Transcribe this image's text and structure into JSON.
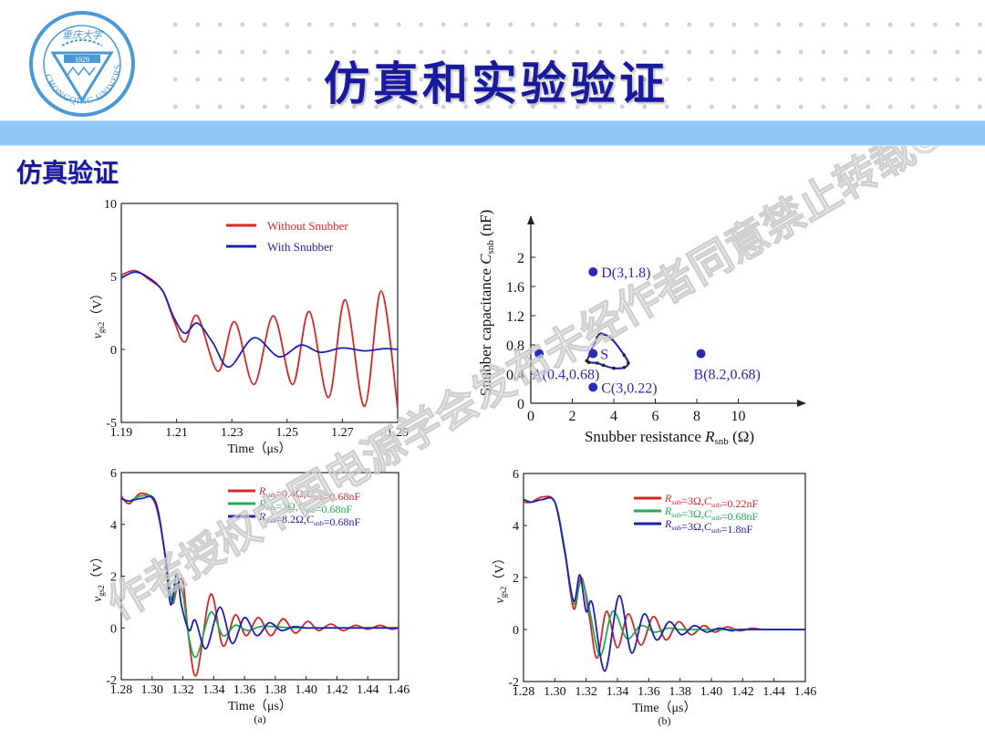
{
  "header": {
    "title": "仿真和实验验证",
    "subtitle": "仿真验证",
    "logo": {
      "name": "chongqing-university-logo",
      "year": "1929",
      "ring_text": "CHONGQING UNIVERSITY",
      "top_text": "重庆大学"
    },
    "colors": {
      "title": "#1a1a9e",
      "band": "#93c6f7"
    }
  },
  "watermark": {
    "text": "作者授权中国电源学会发布未经作者同意禁止转载©"
  },
  "chart_data": [
    {
      "id": "top-left",
      "type": "line",
      "title": "",
      "xlabel": "Time（μs）",
      "ylabel": "vgs2（V）",
      "xlim": [
        1.19,
        1.29
      ],
      "ylim": [
        -5,
        10
      ],
      "xticks": [
        "1.19",
        "1.21",
        "1.23",
        "1.25",
        "1.27",
        "1.29"
      ],
      "yticks": [
        "-5",
        "0",
        "5",
        "10"
      ],
      "legend_position": "upper-right",
      "series": [
        {
          "name": "Without Snubber",
          "color": "#d62728",
          "x": [
            1.19,
            1.195,
            1.2,
            1.205,
            1.209,
            1.213,
            1.2175,
            1.225,
            1.231,
            1.238,
            1.245,
            1.252,
            1.258,
            1.265,
            1.271,
            1.278,
            1.284,
            1.29
          ],
          "y": [
            5.1,
            5.4,
            4.8,
            4.0,
            2.0,
            0.5,
            2.3,
            -1.5,
            1.9,
            -2.4,
            2.3,
            -2.4,
            2.6,
            -3.3,
            3.4,
            -3.9,
            4.0,
            -4.0
          ]
        },
        {
          "name": "With Snubber",
          "color": "#1f1fb4",
          "x": [
            1.19,
            1.195,
            1.2,
            1.205,
            1.209,
            1.213,
            1.2175,
            1.223,
            1.229,
            1.238,
            1.247,
            1.255,
            1.262,
            1.27,
            1.278,
            1.285,
            1.29
          ],
          "y": [
            4.9,
            5.3,
            4.9,
            4.0,
            2.2,
            1.1,
            1.8,
            0.5,
            -1.2,
            0.8,
            -0.5,
            0.3,
            -0.2,
            0.1,
            -0.1,
            0.05,
            0.0
          ]
        }
      ]
    },
    {
      "id": "top-right",
      "type": "scatter",
      "title": "",
      "xlabel": "Snubber resistance Rsnb (Ω)",
      "ylabel": "Snubber capacitance Csnb (nF)",
      "xlim": [
        0,
        11
      ],
      "ylim": [
        0,
        2.4
      ],
      "xticks": [
        "0",
        "2",
        "4",
        "6",
        "8",
        "10"
      ],
      "yticks": [
        "0",
        "0.4",
        "0.8",
        "1.2",
        "1.6",
        "2"
      ],
      "color": "#2a2ab4",
      "points": [
        {
          "label": "A(0.4,0.68)",
          "x": 0.4,
          "y": 0.68
        },
        {
          "label": "B(8.2,0.68)",
          "x": 8.2,
          "y": 0.68
        },
        {
          "label": "C(3,0.22)",
          "x": 3,
          "y": 0.22
        },
        {
          "label": "D(3,1.8)",
          "x": 3,
          "y": 1.8
        },
        {
          "label": "S",
          "x": 3,
          "y": 0.68
        }
      ],
      "region_boundary": {
        "x": [
          2.7,
          3.2,
          3.4,
          3.9,
          4.5,
          4.7,
          4.5,
          4.0,
          3.5,
          3.2,
          2.8,
          2.7
        ],
        "y": [
          0.58,
          0.9,
          0.95,
          0.88,
          0.66,
          0.55,
          0.49,
          0.48,
          0.52,
          0.55,
          0.56,
          0.58
        ]
      }
    },
    {
      "id": "bottom-left",
      "type": "line",
      "title": "",
      "caption": "(a)",
      "xlabel": "Time（μs）",
      "ylabel": "vgs2（V）",
      "xlim": [
        1.28,
        1.46
      ],
      "ylim": [
        -2,
        6
      ],
      "xticks": [
        "1.28",
        "1.30",
        "1.32",
        "1.34",
        "1.36",
        "1.38",
        "1.40",
        "1.42",
        "1.44",
        "1.46"
      ],
      "yticks": [
        "-2",
        "0",
        "2",
        "4",
        "6"
      ],
      "legend_position": "upper-right",
      "series": [
        {
          "name": "Rsnb=0.4Ω,Csnb=0.68nF",
          "color": "#d62728",
          "x": [
            1.28,
            1.285,
            1.293,
            1.302,
            1.308,
            1.313,
            1.316,
            1.32,
            1.324,
            1.329,
            1.338,
            1.346,
            1.354,
            1.361,
            1.369,
            1.377,
            1.385,
            1.393,
            1.401,
            1.408,
            1.416,
            1.424,
            1.432,
            1.44,
            1.448,
            1.455,
            1.46
          ],
          "y": [
            5.1,
            4.8,
            5.2,
            4.8,
            3.0,
            1.0,
            1.5,
            1.8,
            -0.5,
            -1.8,
            1.3,
            -0.7,
            0.5,
            -0.3,
            0.4,
            -0.3,
            0.35,
            -0.2,
            0.25,
            -0.1,
            0.15,
            -0.1,
            0.1,
            -0.05,
            0.1,
            -0.05,
            0.0
          ]
        },
        {
          "name": "Rsnb=3Ω,Csnb=0.68nF",
          "color": "#22aa55",
          "x": [
            1.28,
            1.285,
            1.293,
            1.302,
            1.308,
            1.313,
            1.316,
            1.32,
            1.324,
            1.329,
            1.338,
            1.346,
            1.354,
            1.362,
            1.37,
            1.38,
            1.39,
            1.4,
            1.46
          ],
          "y": [
            5.0,
            4.9,
            5.1,
            4.9,
            3.0,
            1.0,
            1.7,
            1.3,
            -0.4,
            -1.1,
            0.6,
            -0.3,
            0.1,
            -0.1,
            0.05,
            0.05,
            0.0,
            0.0,
            0.0
          ]
        },
        {
          "name": "Rsnb=8.2Ω,Csnb=0.68nF",
          "color": "#1f1fb4",
          "x": [
            1.28,
            1.285,
            1.293,
            1.302,
            1.308,
            1.312,
            1.316,
            1.319,
            1.324,
            1.328,
            1.335,
            1.344,
            1.352,
            1.36,
            1.368,
            1.376,
            1.384,
            1.392,
            1.4,
            1.41,
            1.46
          ],
          "y": [
            5.0,
            4.9,
            5.0,
            4.9,
            3.0,
            0.9,
            2.1,
            0.9,
            -0.1,
            0.3,
            -0.8,
            0.8,
            -0.6,
            0.4,
            -0.3,
            0.2,
            -0.1,
            0.05,
            0.0,
            0.0,
            0.0
          ]
        }
      ]
    },
    {
      "id": "bottom-right",
      "type": "line",
      "title": "",
      "caption": "(b)",
      "xlabel": "Time（μs）",
      "ylabel": "vgs2（V）",
      "xlim": [
        1.28,
        1.46
      ],
      "ylim": [
        -2,
        6
      ],
      "xticks": [
        "1.28",
        "1.30",
        "1.32",
        "1.34",
        "1.36",
        "1.38",
        "1.40",
        "1.42",
        "1.44",
        "1.46"
      ],
      "yticks": [
        "-2",
        "0",
        "2",
        "4",
        "6"
      ],
      "legend_position": "upper-right",
      "series": [
        {
          "name": "Rsnb=3Ω,Csnb=0.22nF",
          "color": "#d62728",
          "x": [
            1.28,
            1.285,
            1.292,
            1.3,
            1.306,
            1.312,
            1.317,
            1.322,
            1.327,
            1.333,
            1.34,
            1.347,
            1.355,
            1.363,
            1.371,
            1.379,
            1.387,
            1.395,
            1.402,
            1.41,
            1.418,
            1.426,
            1.434,
            1.46
          ],
          "y": [
            4.9,
            4.9,
            5.1,
            4.9,
            3.2,
            0.8,
            2.0,
            0.5,
            -1.1,
            0.7,
            -0.7,
            0.6,
            -0.6,
            0.5,
            -0.4,
            0.3,
            -0.2,
            0.15,
            -0.1,
            0.1,
            -0.05,
            0.05,
            0.0,
            0.0
          ]
        },
        {
          "name": "Rsnb=3Ω,Csnb=0.68nF",
          "color": "#22aa55",
          "x": [
            1.28,
            1.285,
            1.292,
            1.3,
            1.306,
            1.312,
            1.317,
            1.322,
            1.329,
            1.337,
            1.346,
            1.355,
            1.364,
            1.372,
            1.38,
            1.39,
            1.46
          ],
          "y": [
            5.0,
            4.9,
            5.0,
            4.9,
            3.2,
            1.0,
            1.9,
            0.8,
            -1.0,
            0.7,
            -0.35,
            0.15,
            -0.1,
            0.05,
            0.0,
            0.0,
            0.0
          ]
        },
        {
          "name": "Rsnb=3Ω,Csnb=1.8nF",
          "color": "#1f1fb4",
          "x": [
            1.28,
            1.285,
            1.292,
            1.3,
            1.306,
            1.312,
            1.316,
            1.32,
            1.324,
            1.332,
            1.341,
            1.349,
            1.357,
            1.365,
            1.373,
            1.381,
            1.389,
            1.397,
            1.405,
            1.413,
            1.42,
            1.46
          ],
          "y": [
            5.0,
            4.9,
            5.0,
            4.9,
            3.1,
            1.1,
            2.1,
            0.7,
            1.0,
            -1.6,
            1.3,
            -0.9,
            0.6,
            -0.4,
            0.3,
            -0.2,
            0.15,
            -0.1,
            0.05,
            -0.05,
            0.0,
            0.0
          ]
        }
      ]
    }
  ]
}
